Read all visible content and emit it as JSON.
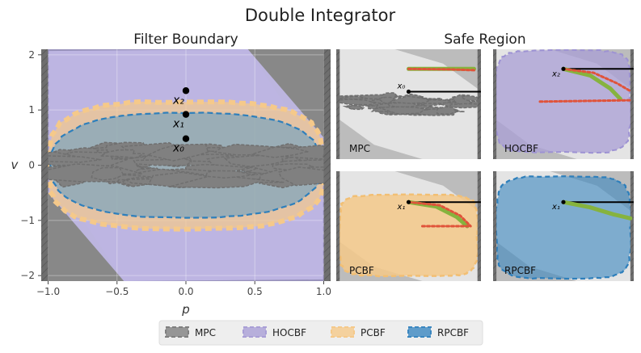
{
  "figure": {
    "title": "Double Integrator",
    "left_subtitle": "Filter Boundary",
    "right_subtitle": "Safe Region"
  },
  "colors": {
    "background": "#888888",
    "wall": "#6e6e6e",
    "light_region": "#e4e4e4",
    "mpc": "#808080",
    "hocbf": "#a99fd6",
    "pcbf": "#f5c98a",
    "rpcbf": "#3b87c0",
    "traj_green": "#86b33e",
    "traj_red": "#e0533a"
  },
  "chart_data": [
    {
      "type": "area",
      "title": "Filter Boundary",
      "xlabel": "p",
      "ylabel": "v",
      "xlim": [
        -1.05,
        1.05
      ],
      "ylim": [
        -2.1,
        2.1
      ],
      "xticks": [
        "−1.0",
        "−0.5",
        "0.0",
        "0.5",
        "1.0"
      ],
      "yticks": [
        "−2",
        "−1",
        "0",
        "1",
        "2"
      ],
      "xtick_values": [
        -1.0,
        -0.5,
        0.0,
        0.5,
        1.0
      ],
      "ytick_values": [
        -2,
        -1,
        0,
        1,
        2
      ],
      "grid": true,
      "walls_at": [
        -1.0,
        1.0
      ],
      "hocbf_band_edges": {
        "upper": [
          [
            -1.0,
            2.07
          ],
          [
            0.45,
            2.1
          ],
          [
            1.0,
            0.5
          ]
        ],
        "lower": [
          [
            -1.0,
            -0.5
          ],
          [
            -0.45,
            -2.1
          ],
          [
            1.0,
            -2.07
          ]
        ]
      },
      "hocbf_outer_fan": {
        "upper": [
          [
            -1.0,
            2.1
          ],
          [
            0.45,
            2.1
          ],
          [
            1.0,
            0.05
          ]
        ],
        "lower": [
          [
            -1.0,
            -0.05
          ],
          [
            -0.45,
            -2.1
          ],
          [
            1.0,
            -2.1
          ]
        ]
      },
      "pcbf_boundary": {
        "p_range": [
          -1.0,
          1.0
        ],
        "v_range": [
          -1.15,
          1.15
        ]
      },
      "rpcbf_boundary": {
        "p_range": [
          -0.98,
          0.98
        ],
        "v_range": [
          -0.95,
          0.95
        ]
      },
      "points": [
        {
          "name": "x₂",
          "p": 0.0,
          "v": 1.35
        },
        {
          "name": "x₁",
          "p": 0.0,
          "v": 0.92
        },
        {
          "name": "x₀",
          "p": 0.0,
          "v": 0.48
        }
      ]
    },
    {
      "type": "line",
      "title": "MPC",
      "xlim": [
        -1.05,
        1.05
      ],
      "ylim": [
        -2.1,
        2.1
      ],
      "start_point": {
        "name": "x₀",
        "p": 0.0,
        "v": 0.48
      },
      "trajectories": [
        {
          "kind": "green",
          "points": [
            [
              0.0,
              1.35
            ],
            [
              0.5,
              1.35
            ],
            [
              0.95,
              1.35
            ]
          ]
        },
        {
          "kind": "red",
          "points": [
            [
              0.0,
              1.35
            ],
            [
              0.6,
              1.33
            ],
            [
              0.95,
              1.3
            ]
          ]
        }
      ]
    },
    {
      "type": "line",
      "title": "HOCBF",
      "xlim": [
        -1.05,
        1.05
      ],
      "ylim": [
        -2.1,
        2.1
      ],
      "start_point": {
        "name": "x₂",
        "p": 0.0,
        "v": 1.35
      },
      "trajectories": [
        {
          "kind": "green",
          "points": [
            [
              0.0,
              1.35
            ],
            [
              0.4,
              1.1
            ],
            [
              0.7,
              0.6
            ],
            [
              0.85,
              0.2
            ]
          ]
        },
        {
          "kind": "red",
          "points": [
            [
              0.0,
              1.35
            ],
            [
              0.45,
              1.2
            ],
            [
              0.8,
              0.8
            ],
            [
              1.0,
              0.5
            ]
          ]
        },
        {
          "kind": "red",
          "points": [
            [
              -0.35,
              0.1
            ],
            [
              0.2,
              0.12
            ],
            [
              1.0,
              0.15
            ]
          ]
        }
      ]
    },
    {
      "type": "line",
      "title": "PCBF",
      "xlim": [
        -1.05,
        1.05
      ],
      "ylim": [
        -2.1,
        2.1
      ],
      "start_point": {
        "name": "x₁",
        "p": 0.0,
        "v": 0.92
      },
      "trajectories": [
        {
          "kind": "green",
          "points": [
            [
              0.0,
              0.92
            ],
            [
              0.4,
              0.75
            ],
            [
              0.7,
              0.35
            ],
            [
              0.85,
              0.0
            ]
          ]
        },
        {
          "kind": "red",
          "points": [
            [
              0.0,
              0.92
            ],
            [
              0.45,
              0.8
            ],
            [
              0.75,
              0.4
            ],
            [
              0.9,
              0.0
            ]
          ]
        },
        {
          "kind": "red",
          "points": [
            [
              0.2,
              0.0
            ],
            [
              0.5,
              0.0
            ],
            [
              0.9,
              0.0
            ]
          ]
        }
      ]
    },
    {
      "type": "line",
      "title": "RPCBF",
      "xlim": [
        -1.05,
        1.05
      ],
      "ylim": [
        -2.1,
        2.1
      ],
      "start_point": {
        "name": "x₁",
        "p": 0.0,
        "v": 0.92
      },
      "trajectories": [
        {
          "kind": "green",
          "points": [
            [
              0.0,
              0.92
            ],
            [
              0.4,
              0.72
            ],
            [
              0.75,
              0.45
            ],
            [
              1.0,
              0.3
            ]
          ]
        }
      ]
    }
  ],
  "legend": {
    "placement": "bottom-center",
    "entries": [
      {
        "label": "MPC",
        "color": "#808080"
      },
      {
        "label": "HOCBF",
        "color": "#a99fd6"
      },
      {
        "label": "PCBF",
        "color": "#f5c98a"
      },
      {
        "label": "RPCBF",
        "color": "#3b87c0"
      }
    ]
  }
}
